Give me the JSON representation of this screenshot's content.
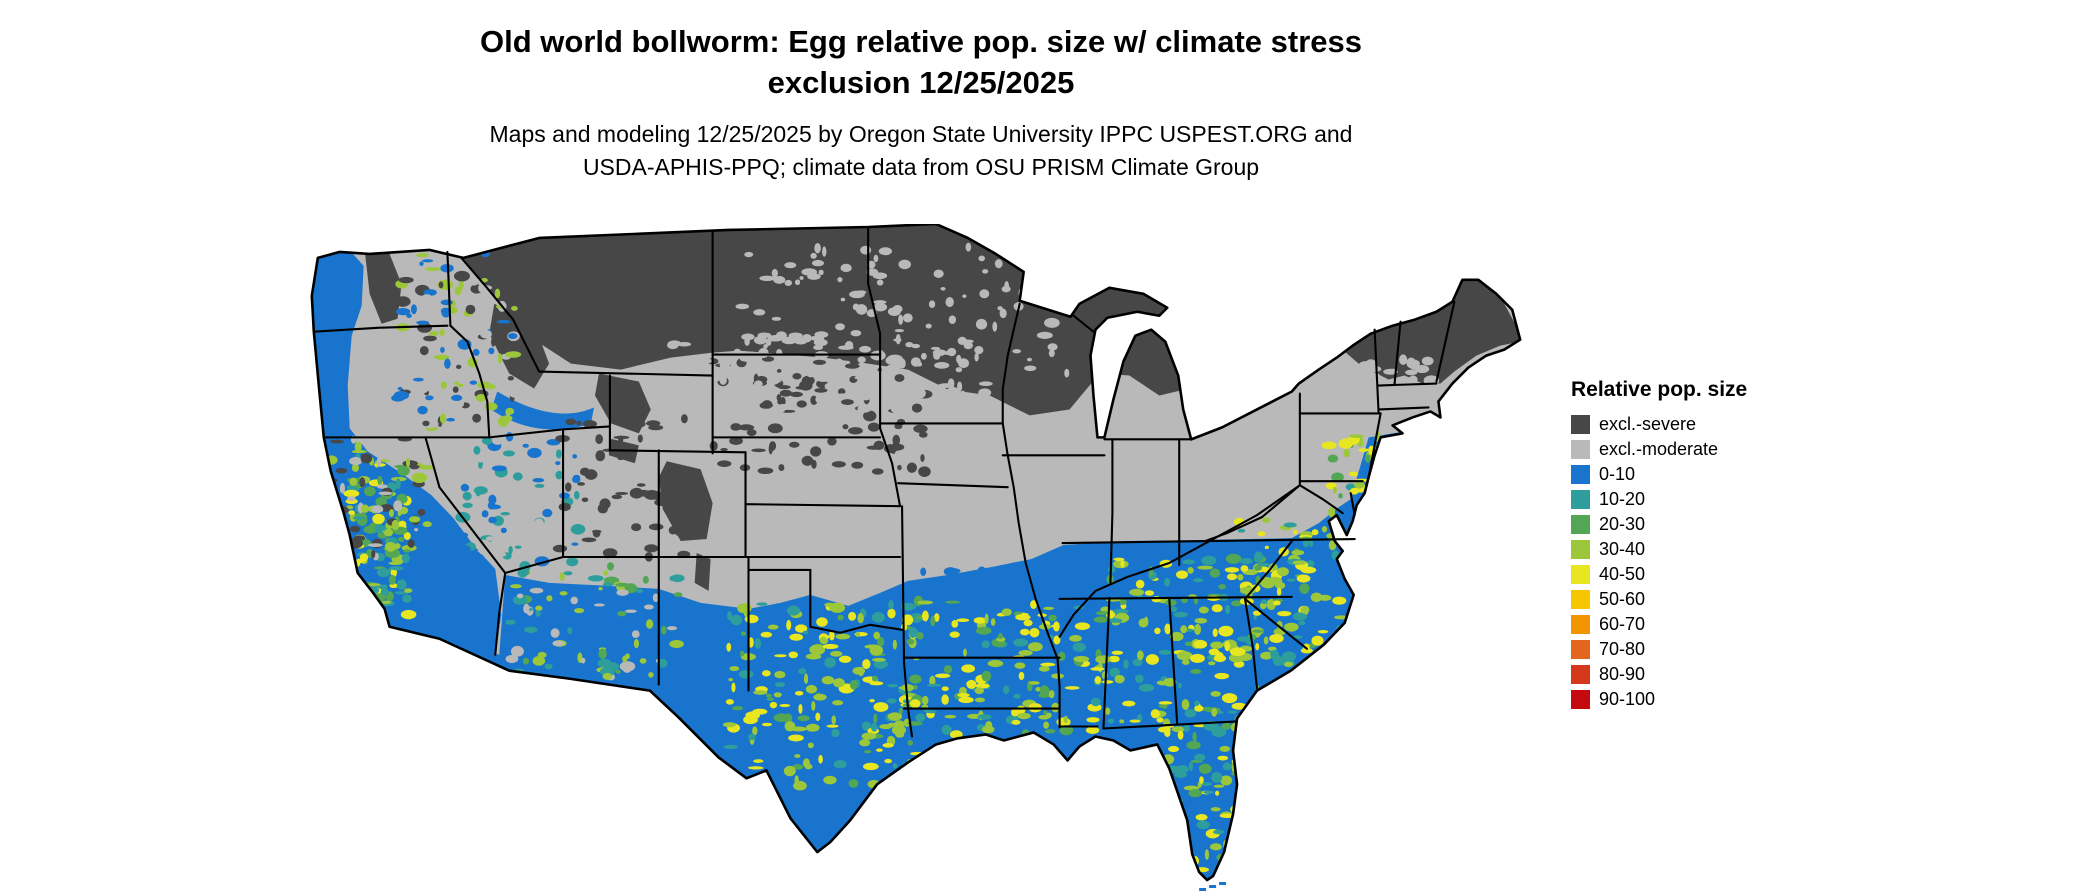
{
  "title": {
    "line1": "Old world bollworm: Egg relative pop. size w/ climate stress",
    "line2": "exclusion 12/25/2025"
  },
  "subtitle": {
    "line1": "Maps and modeling 12/25/2025 by Oregon State University IPPC USPEST.ORG and",
    "line2": "USDA-APHIS-PPQ; climate data from OSU PRISM Climate Group"
  },
  "legend": {
    "title": "Relative pop. size",
    "items": [
      {
        "label": "excl.-severe",
        "color": "#474747"
      },
      {
        "label": "excl.-moderate",
        "color": "#b9b9b9"
      },
      {
        "label": "0-10",
        "color": "#1874CD"
      },
      {
        "label": "10-20",
        "color": "#2E9E9C"
      },
      {
        "label": "20-30",
        "color": "#53A653"
      },
      {
        "label": "30-40",
        "color": "#9DC73B"
      },
      {
        "label": "40-50",
        "color": "#E8E621"
      },
      {
        "label": "50-60",
        "color": "#F6C700"
      },
      {
        "label": "60-70",
        "color": "#F29400"
      },
      {
        "label": "70-80",
        "color": "#E4661C"
      },
      {
        "label": "80-90",
        "color": "#D6391A"
      },
      {
        "label": "90-100",
        "color": "#C40A0F"
      }
    ]
  },
  "map": {
    "region": "Continental United States",
    "background_color": "#ffffff",
    "boundary_color": "#000000",
    "excl_severe_color": "#474747",
    "excl_moderate_color": "#b9b9b9",
    "low_pop_color": "#1874CD"
  }
}
